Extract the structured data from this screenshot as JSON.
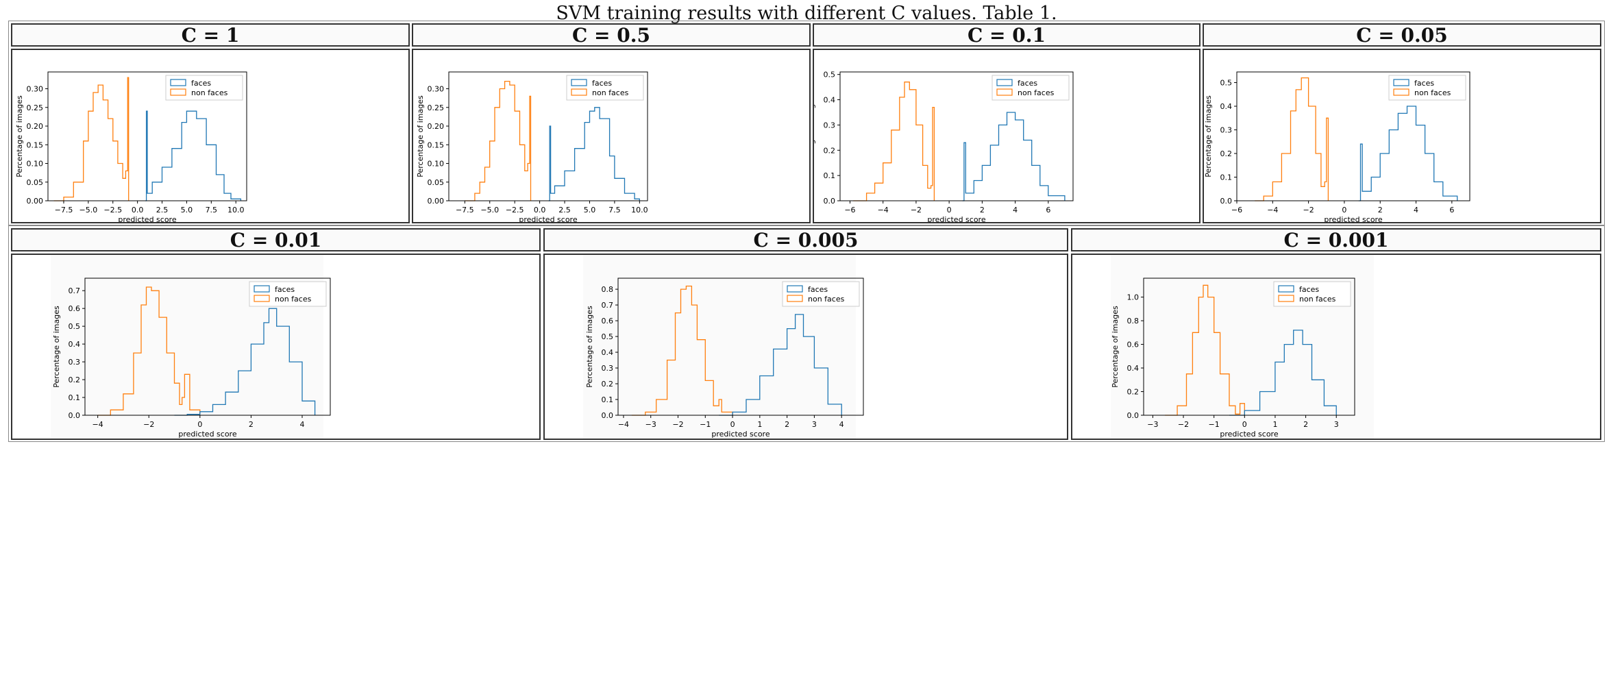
{
  "caption": "SVM training results with different C values. Table 1.",
  "colors": {
    "faces": "#1f77b4",
    "non_faces": "#ff7f0e"
  },
  "chart_data": [
    {
      "type": "histogram",
      "title": "C = 1",
      "xlabel": "predicted score",
      "ylabel": "Percentage of images",
      "legend": [
        "faces",
        "non faces"
      ],
      "legend_position": "top-right",
      "xlim": [
        -9.1,
        11.1
      ],
      "ylim": [
        0,
        0.345
      ],
      "xticks": [
        -7.5,
        -5.0,
        -2.5,
        0.0,
        2.5,
        5.0,
        7.5,
        10.0
      ],
      "xtick_labels": [
        "−7.5",
        "−5.0",
        "−2.5",
        "0.0",
        "2.5",
        "5.0",
        "7.5",
        "10.0"
      ],
      "yticks": [
        0,
        0.05,
        0.1,
        0.15,
        0.2,
        0.25,
        0.3
      ],
      "ytick_labels": [
        "0.00",
        "0.05",
        "0.10",
        "0.15",
        "0.20",
        "0.25",
        "0.30"
      ],
      "series": [
        {
          "name": "non faces",
          "color": "#ff7f0e",
          "x": [
            -8.5,
            -7.5,
            -6.5,
            -5.5,
            -5.0,
            -4.5,
            -4.0,
            -3.5,
            -3.0,
            -2.5,
            -2.0,
            -1.5,
            -1.2,
            -1.0,
            -0.9
          ],
          "y": [
            0.0,
            0.01,
            0.05,
            0.16,
            0.24,
            0.29,
            0.31,
            0.27,
            0.22,
            0.16,
            0.1,
            0.06,
            0.08,
            0.33,
            0.0
          ]
        },
        {
          "name": "faces",
          "color": "#1f77b4",
          "x": [
            0.8,
            0.9,
            1.0,
            1.5,
            2.5,
            3.5,
            4.5,
            5.0,
            5.5,
            6.0,
            7.0,
            8.0,
            8.8,
            9.5,
            10.5
          ],
          "y": [
            0.0,
            0.24,
            0.02,
            0.05,
            0.09,
            0.14,
            0.21,
            0.24,
            0.24,
            0.22,
            0.15,
            0.07,
            0.02,
            0.005,
            0.0
          ]
        }
      ]
    },
    {
      "type": "histogram",
      "title": "C = 0.5",
      "xlabel": "predicted score",
      "ylabel": "Percentage of images",
      "legend": [
        "faces",
        "non faces"
      ],
      "legend_position": "top-right",
      "xlim": [
        -9.1,
        10.8
      ],
      "ylim": [
        0,
        0.345
      ],
      "xticks": [
        -7.5,
        -5.0,
        -2.5,
        0.0,
        2.5,
        5.0,
        7.5,
        10.0
      ],
      "xtick_labels": [
        "−7.5",
        "−5.0",
        "−2.5",
        "0.0",
        "2.5",
        "5.0",
        "7.5",
        "10.0"
      ],
      "yticks": [
        0,
        0.05,
        0.1,
        0.15,
        0.2,
        0.25,
        0.3
      ],
      "ytick_labels": [
        "0.00",
        "0.05",
        "0.10",
        "0.15",
        "0.20",
        "0.25",
        "0.30"
      ],
      "series": [
        {
          "name": "non faces",
          "color": "#ff7f0e",
          "x": [
            -7.5,
            -6.5,
            -6.0,
            -5.5,
            -5.0,
            -4.5,
            -4.0,
            -3.5,
            -3.0,
            -2.5,
            -2.0,
            -1.5,
            -1.2,
            -1.0,
            -0.9
          ],
          "y": [
            0.0,
            0.02,
            0.05,
            0.09,
            0.16,
            0.25,
            0.3,
            0.32,
            0.31,
            0.24,
            0.15,
            0.08,
            0.1,
            0.28,
            0.0
          ]
        },
        {
          "name": "faces",
          "color": "#1f77b4",
          "x": [
            0.9,
            1.0,
            1.1,
            1.5,
            2.5,
            3.5,
            4.5,
            5.0,
            5.5,
            6.0,
            7.0,
            7.5,
            8.5,
            9.5,
            10.0
          ],
          "y": [
            0.0,
            0.2,
            0.02,
            0.04,
            0.08,
            0.14,
            0.21,
            0.24,
            0.25,
            0.22,
            0.12,
            0.06,
            0.02,
            0.005,
            0.0
          ]
        }
      ]
    },
    {
      "type": "histogram",
      "title": "C = 0.1",
      "xlabel": "predicted score",
      "ylabel": "Percentage of images",
      "legend": [
        "faces",
        "non faces"
      ],
      "legend_position": "top-right",
      "xlim": [
        -6.6,
        7.5
      ],
      "ylim": [
        0,
        0.51
      ],
      "xticks": [
        -6,
        -4,
        -2,
        0,
        2,
        4,
        6
      ],
      "xtick_labels": [
        "−6",
        "−4",
        "−2",
        "0",
        "2",
        "4",
        "6"
      ],
      "yticks": [
        0,
        0.1,
        0.2,
        0.3,
        0.4,
        0.5
      ],
      "ytick_labels": [
        "0.0",
        "0.1",
        "0.2",
        "0.3",
        "0.4",
        "0.5"
      ],
      "series": [
        {
          "name": "non faces",
          "color": "#ff7f0e",
          "x": [
            -5.8,
            -5.0,
            -4.5,
            -4.0,
            -3.5,
            -3.0,
            -2.7,
            -2.4,
            -2.0,
            -1.6,
            -1.3,
            -1.1,
            -1.0,
            -0.9
          ],
          "y": [
            0.0,
            0.03,
            0.07,
            0.15,
            0.28,
            0.41,
            0.47,
            0.44,
            0.3,
            0.14,
            0.05,
            0.06,
            0.37,
            0.0
          ]
        },
        {
          "name": "faces",
          "color": "#1f77b4",
          "x": [
            0.8,
            0.9,
            1.0,
            1.5,
            2.0,
            2.5,
            3.0,
            3.5,
            4.0,
            4.5,
            5.0,
            5.5,
            6.0,
            7.0
          ],
          "y": [
            0.0,
            0.23,
            0.03,
            0.08,
            0.14,
            0.22,
            0.3,
            0.35,
            0.32,
            0.24,
            0.14,
            0.06,
            0.02,
            0.0
          ]
        }
      ]
    },
    {
      "type": "histogram",
      "title": "C = 0.05",
      "xlabel": "predicted score",
      "ylabel": "Percentage of images",
      "legend": [
        "faces",
        "non faces"
      ],
      "legend_position": "top-right",
      "xlim": [
        -6.0,
        7.0
      ],
      "ylim": [
        0,
        0.545
      ],
      "xticks": [
        -6,
        -4,
        -2,
        0,
        2,
        4,
        6
      ],
      "xtick_labels": [
        "−6",
        "−4",
        "−2",
        "0",
        "2",
        "4",
        "6"
      ],
      "yticks": [
        0,
        0.1,
        0.2,
        0.3,
        0.4,
        0.5
      ],
      "ytick_labels": [
        "0.0",
        "0.1",
        "0.2",
        "0.3",
        "0.4",
        "0.5"
      ],
      "series": [
        {
          "name": "non faces",
          "color": "#ff7f0e",
          "x": [
            -5.0,
            -4.5,
            -4.0,
            -3.5,
            -3.0,
            -2.7,
            -2.4,
            -2.0,
            -1.6,
            -1.3,
            -1.1,
            -1.0,
            -0.9
          ],
          "y": [
            0.0,
            0.02,
            0.08,
            0.2,
            0.38,
            0.47,
            0.52,
            0.4,
            0.2,
            0.06,
            0.08,
            0.35,
            0.0
          ]
        },
        {
          "name": "faces",
          "color": "#1f77b4",
          "x": [
            0.8,
            0.9,
            1.0,
            1.5,
            2.0,
            2.5,
            3.0,
            3.5,
            4.0,
            4.5,
            5.0,
            5.5,
            6.3
          ],
          "y": [
            0.0,
            0.24,
            0.04,
            0.1,
            0.2,
            0.3,
            0.37,
            0.4,
            0.32,
            0.2,
            0.08,
            0.02,
            0.0
          ]
        }
      ]
    },
    {
      "type": "histogram",
      "title": "C = 0.01",
      "xlabel": "predicted score",
      "ylabel": "Percentage of images",
      "legend": [
        "faces",
        "non faces"
      ],
      "legend_position": "top-right",
      "xlim": [
        -4.5,
        5.1
      ],
      "ylim": [
        0,
        0.77
      ],
      "xticks": [
        -4,
        -2,
        0,
        2,
        4
      ],
      "xtick_labels": [
        "−4",
        "−2",
        "0",
        "2",
        "4"
      ],
      "yticks": [
        0,
        0.1,
        0.2,
        0.3,
        0.4,
        0.5,
        0.6,
        0.7
      ],
      "ytick_labels": [
        "0.0",
        "0.1",
        "0.2",
        "0.3",
        "0.4",
        "0.5",
        "0.6",
        "0.7"
      ],
      "series": [
        {
          "name": "non faces",
          "color": "#ff7f0e",
          "x": [
            -4.0,
            -3.5,
            -3.0,
            -2.6,
            -2.3,
            -2.1,
            -1.9,
            -1.6,
            -1.3,
            -1.0,
            -0.8,
            -0.7,
            -0.6,
            -0.4,
            0.0
          ],
          "y": [
            0.0,
            0.03,
            0.12,
            0.35,
            0.62,
            0.72,
            0.7,
            0.55,
            0.35,
            0.18,
            0.06,
            0.1,
            0.23,
            0.03,
            0.0
          ]
        },
        {
          "name": "faces",
          "color": "#1f77b4",
          "x": [
            -1.0,
            -0.5,
            0.0,
            0.5,
            1.0,
            1.5,
            2.0,
            2.5,
            2.7,
            3.0,
            3.5,
            4.0,
            4.5
          ],
          "y": [
            0.0,
            0.005,
            0.02,
            0.06,
            0.13,
            0.25,
            0.4,
            0.52,
            0.6,
            0.5,
            0.3,
            0.08,
            0.0
          ]
        }
      ]
    },
    {
      "type": "histogram",
      "title": "C = 0.005",
      "xlabel": "predicted score",
      "ylabel": "Percentage of images",
      "legend": [
        "faces",
        "non faces"
      ],
      "legend_position": "top-right",
      "xlim": [
        -4.2,
        4.8
      ],
      "ylim": [
        0,
        0.87
      ],
      "xticks": [
        -4,
        -3,
        -2,
        -1,
        0,
        1,
        2,
        3,
        4
      ],
      "xtick_labels": [
        "−4",
        "−3",
        "−2",
        "−1",
        "0",
        "1",
        "2",
        "3",
        "4"
      ],
      "yticks": [
        0,
        0.1,
        0.2,
        0.3,
        0.4,
        0.5,
        0.6,
        0.7,
        0.8
      ],
      "ytick_labels": [
        "0.0",
        "0.1",
        "0.2",
        "0.3",
        "0.4",
        "0.5",
        "0.6",
        "0.7",
        "0.8"
      ],
      "series": [
        {
          "name": "non faces",
          "color": "#ff7f0e",
          "x": [
            -3.7,
            -3.2,
            -2.8,
            -2.4,
            -2.1,
            -1.9,
            -1.7,
            -1.5,
            -1.3,
            -1.0,
            -0.7,
            -0.5,
            -0.4,
            0.0
          ],
          "y": [
            0.0,
            0.02,
            0.1,
            0.35,
            0.65,
            0.8,
            0.82,
            0.7,
            0.48,
            0.22,
            0.06,
            0.1,
            0.02,
            0.0
          ]
        },
        {
          "name": "faces",
          "color": "#1f77b4",
          "x": [
            -0.5,
            0.0,
            0.5,
            1.0,
            1.5,
            2.0,
            2.3,
            2.6,
            3.0,
            3.5,
            4.0
          ],
          "y": [
            0.0,
            0.02,
            0.1,
            0.25,
            0.42,
            0.55,
            0.64,
            0.5,
            0.3,
            0.07,
            0.0
          ]
        }
      ]
    },
    {
      "type": "histogram",
      "title": "C = 0.001",
      "xlabel": "predicted score",
      "ylabel": "Percentage of images",
      "legend": [
        "faces",
        "non faces"
      ],
      "legend_position": "top-right",
      "xlim": [
        -3.3,
        3.6
      ],
      "ylim": [
        0,
        1.16
      ],
      "xticks": [
        -3,
        -2,
        -1,
        0,
        1,
        2,
        3
      ],
      "xtick_labels": [
        "−3",
        "−2",
        "−1",
        "0",
        "1",
        "2",
        "3"
      ],
      "yticks": [
        0,
        0.2,
        0.4,
        0.6,
        0.8,
        1.0
      ],
      "ytick_labels": [
        "0.0",
        "0.2",
        "0.4",
        "0.6",
        "0.8",
        "1.0"
      ],
      "series": [
        {
          "name": "non faces",
          "color": "#ff7f0e",
          "x": [
            -2.6,
            -2.2,
            -1.9,
            -1.7,
            -1.5,
            -1.35,
            -1.2,
            -1.0,
            -0.8,
            -0.5,
            -0.3,
            -0.15,
            0.0
          ],
          "y": [
            0.0,
            0.08,
            0.35,
            0.7,
            1.0,
            1.1,
            1.0,
            0.7,
            0.35,
            0.08,
            0.01,
            0.1,
            0.0
          ]
        },
        {
          "name": "faces",
          "color": "#1f77b4",
          "x": [
            -0.5,
            0.0,
            0.5,
            1.0,
            1.3,
            1.6,
            1.9,
            2.2,
            2.6,
            3.0
          ],
          "y": [
            0.0,
            0.04,
            0.2,
            0.45,
            0.6,
            0.72,
            0.6,
            0.3,
            0.08,
            0.0
          ]
        }
      ]
    }
  ]
}
